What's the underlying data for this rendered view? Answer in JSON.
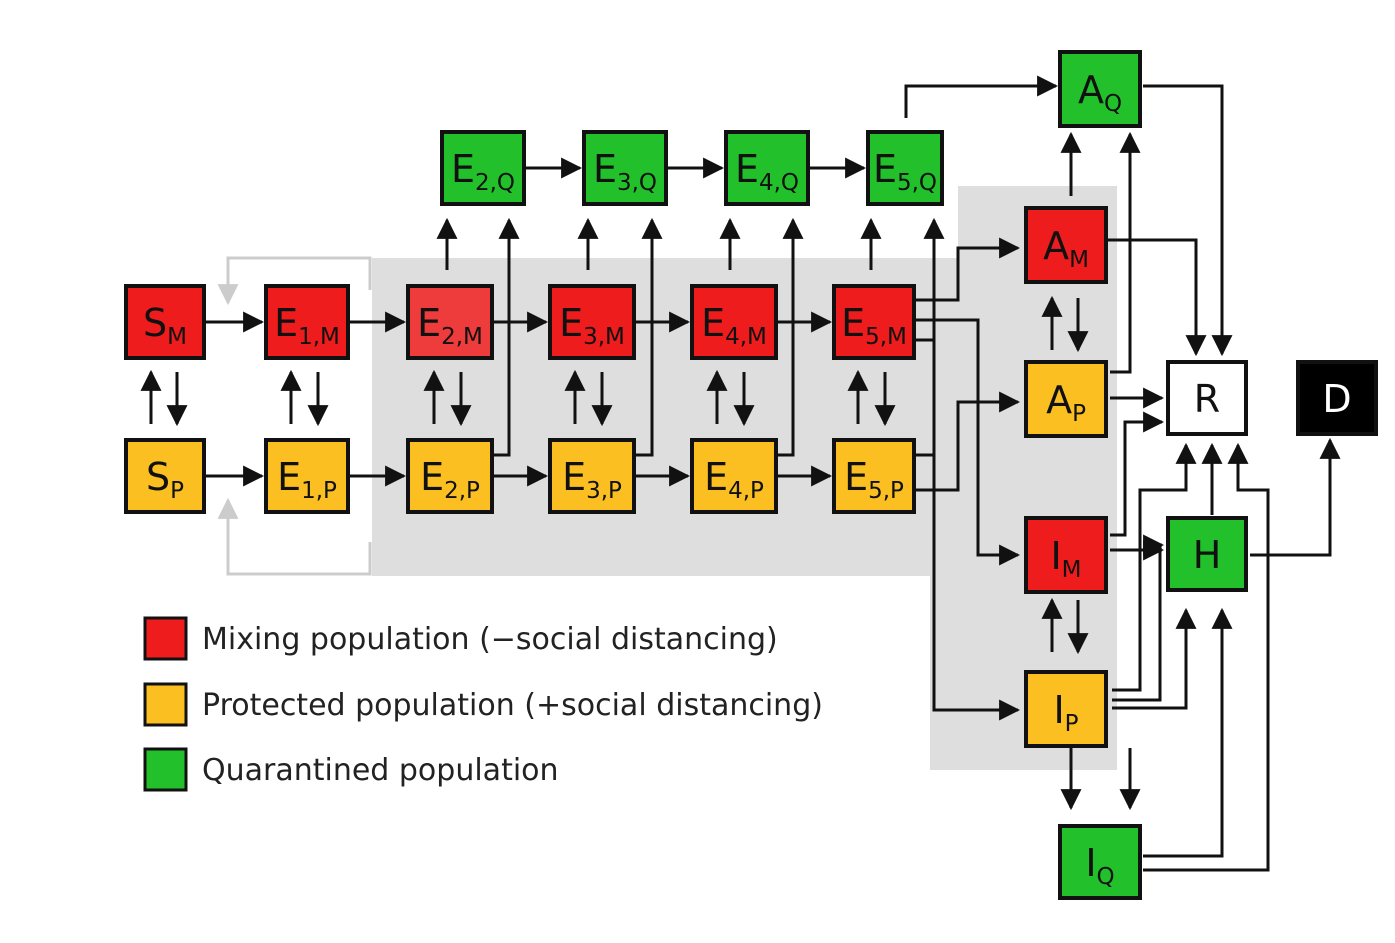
{
  "colors": {
    "mixing": "#ee1c1c",
    "mixing_light": "#ee3b3b",
    "protected": "#fbbf22",
    "quarantined": "#22c12c",
    "recovered": "#ffffff",
    "dead": "#000000",
    "shade": "#dedede",
    "arrow": "#111111",
    "arrow_grey": "#cccccc"
  },
  "nodes": [
    {
      "id": "SM",
      "main": "S",
      "sub": "M",
      "color": "mixing"
    },
    {
      "id": "SP",
      "main": "S",
      "sub": "P",
      "color": "protected"
    },
    {
      "id": "E1M",
      "main": "E",
      "sub": "1,M",
      "color": "mixing"
    },
    {
      "id": "E1P",
      "main": "E",
      "sub": "1,P",
      "color": "protected"
    },
    {
      "id": "E2M",
      "main": "E",
      "sub": "2,M",
      "color": "mixing_light"
    },
    {
      "id": "E2P",
      "main": "E",
      "sub": "2,P",
      "color": "protected"
    },
    {
      "id": "E2Q",
      "main": "E",
      "sub": "2,Q",
      "color": "quarantined"
    },
    {
      "id": "E3M",
      "main": "E",
      "sub": "3,M",
      "color": "mixing"
    },
    {
      "id": "E3P",
      "main": "E",
      "sub": "3,P",
      "color": "protected"
    },
    {
      "id": "E3Q",
      "main": "E",
      "sub": "3,Q",
      "color": "quarantined"
    },
    {
      "id": "E4M",
      "main": "E",
      "sub": "4,M",
      "color": "mixing"
    },
    {
      "id": "E4P",
      "main": "E",
      "sub": "4,P",
      "color": "protected"
    },
    {
      "id": "E4Q",
      "main": "E",
      "sub": "4,Q",
      "color": "quarantined"
    },
    {
      "id": "E5M",
      "main": "E",
      "sub": "5,M",
      "color": "mixing"
    },
    {
      "id": "E5P",
      "main": "E",
      "sub": "5,P",
      "color": "protected"
    },
    {
      "id": "E5Q",
      "main": "E",
      "sub": "5,Q",
      "color": "quarantined"
    },
    {
      "id": "AQ",
      "main": "A",
      "sub": "Q",
      "color": "quarantined"
    },
    {
      "id": "AM",
      "main": "A",
      "sub": "M",
      "color": "mixing"
    },
    {
      "id": "AP",
      "main": "A",
      "sub": "P",
      "color": "protected"
    },
    {
      "id": "IM",
      "main": "I",
      "sub": "M",
      "color": "mixing"
    },
    {
      "id": "IP",
      "main": "I",
      "sub": "P",
      "color": "protected"
    },
    {
      "id": "IQ",
      "main": "I",
      "sub": "Q",
      "color": "quarantined"
    },
    {
      "id": "R",
      "main": "R",
      "sub": "",
      "color": "recovered"
    },
    {
      "id": "H",
      "main": "H",
      "sub": "",
      "color": "quarantined"
    },
    {
      "id": "D",
      "main": "D",
      "sub": "",
      "color": "dead",
      "text_color": "#ffffff"
    }
  ],
  "legend": [
    {
      "label": "Mixing population (−social distancing)",
      "color": "mixing"
    },
    {
      "label": "Protected population (+social distancing)",
      "color": "protected"
    },
    {
      "label": "Quarantined population",
      "color": "quarantined"
    }
  ]
}
